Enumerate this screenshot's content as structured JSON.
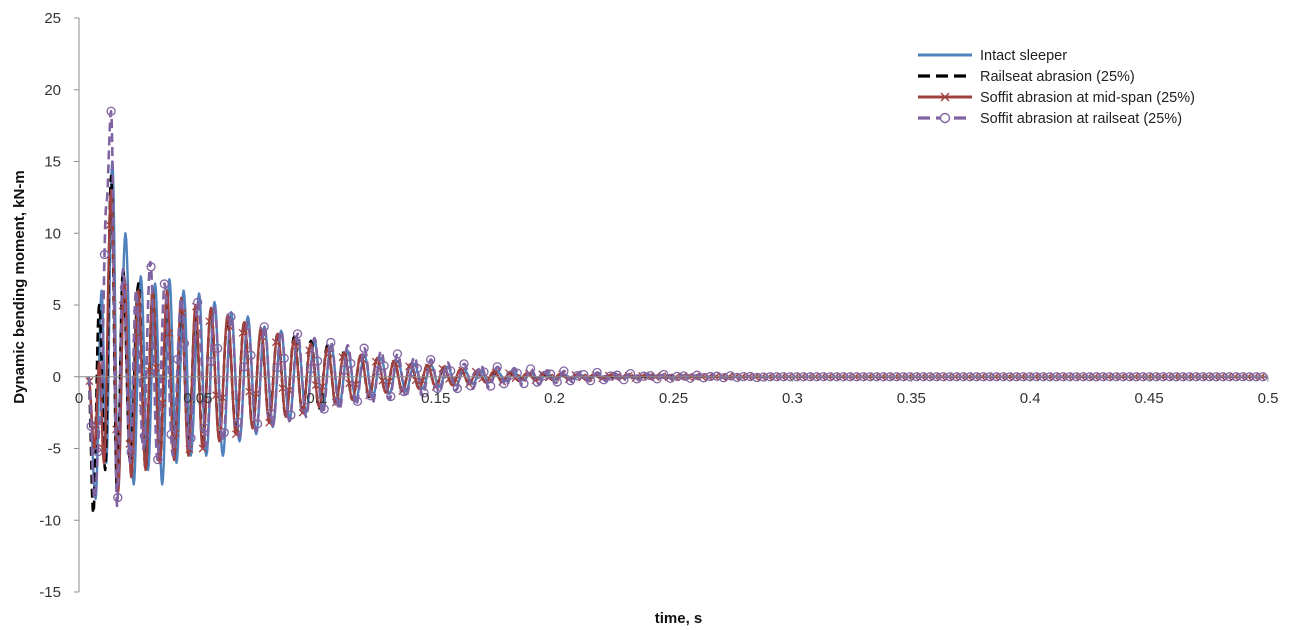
{
  "chart_data": {
    "type": "line",
    "title": "",
    "xlabel": "time, s",
    "ylabel": "Dynamic bending moment, kN-m",
    "xlim": [
      0,
      0.5
    ],
    "ylim": [
      -15,
      25
    ],
    "x_ticks": [
      0,
      0.05,
      0.1,
      0.15,
      0.2,
      0.25,
      0.3,
      0.35,
      0.4,
      0.45,
      0.5
    ],
    "x_tick_labels": [
      "0",
      "0.05",
      "0.1",
      "0.15",
      "0.2",
      "0.25",
      "0.3",
      "0.35",
      "0.4",
      "0.45",
      "0.5"
    ],
    "y_ticks": [
      -15,
      -10,
      -5,
      0,
      5,
      10,
      15,
      20,
      25
    ],
    "y_tick_labels": [
      "-15",
      "-10",
      "-5",
      "0",
      "5",
      "10",
      "15",
      "20",
      "25"
    ],
    "grid": false,
    "legend_position": "top-right",
    "series": [
      {
        "name": "Intact sleeper",
        "color": "#4F81BD",
        "style": "solid",
        "marker": "none",
        "peaks": [
          [
            0.004,
            0
          ],
          [
            0.007,
            -8.5
          ],
          [
            0.0095,
            6
          ],
          [
            0.0115,
            -6
          ],
          [
            0.014,
            15
          ],
          [
            0.0165,
            -7.5
          ],
          [
            0.0195,
            10
          ],
          [
            0.023,
            -7.5
          ],
          [
            0.026,
            7
          ],
          [
            0.029,
            -6.5
          ],
          [
            0.032,
            6.5
          ],
          [
            0.035,
            -7.5
          ],
          [
            0.038,
            6.8
          ],
          [
            0.041,
            -6
          ],
          [
            0.044,
            6
          ],
          [
            0.047,
            -5.5
          ],
          [
            0.0505,
            5.8
          ],
          [
            0.0535,
            -5.5
          ],
          [
            0.057,
            5.2
          ],
          [
            0.0605,
            -5.5
          ],
          [
            0.064,
            4.5
          ],
          [
            0.0675,
            -4.5
          ],
          [
            0.071,
            4.2
          ],
          [
            0.0745,
            -4
          ],
          [
            0.078,
            3.5
          ],
          [
            0.0815,
            -3.5
          ],
          [
            0.085,
            3.2
          ],
          [
            0.0885,
            -3
          ],
          [
            0.092,
            2.6
          ],
          [
            0.0955,
            -2.5
          ],
          [
            0.099,
            2.5
          ],
          [
            0.1025,
            -2.2
          ],
          [
            0.106,
            2.2
          ],
          [
            0.1095,
            -1.9
          ],
          [
            0.113,
            1.8
          ],
          [
            0.1165,
            -1.6
          ],
          [
            0.12,
            1.5
          ],
          [
            0.1235,
            -1.4
          ],
          [
            0.127,
            1.3
          ],
          [
            0.1305,
            -1.2
          ],
          [
            0.134,
            1.1
          ],
          [
            0.1375,
            -1
          ],
          [
            0.141,
            0.9
          ],
          [
            0.1445,
            -0.8
          ],
          [
            0.148,
            0.8
          ],
          [
            0.1515,
            -0.7
          ],
          [
            0.155,
            0.7
          ],
          [
            0.1585,
            -0.6
          ],
          [
            0.162,
            0.5
          ],
          [
            0.1655,
            -0.5
          ],
          [
            0.169,
            0.4
          ],
          [
            0.1725,
            -0.4
          ],
          [
            0.176,
            0.35
          ],
          [
            0.1795,
            -0.3
          ],
          [
            0.183,
            0.3
          ],
          [
            0.1865,
            -0.25
          ],
          [
            0.19,
            0.25
          ],
          [
            0.1935,
            -0.2
          ],
          [
            0.197,
            0.2
          ],
          [
            0.2005,
            -0.2
          ],
          [
            0.204,
            0.15
          ],
          [
            0.2075,
            -0.15
          ],
          [
            0.211,
            0.12
          ],
          [
            0.2145,
            -0.12
          ],
          [
            0.218,
            0.1
          ],
          [
            0.2215,
            -0.1
          ],
          [
            0.225,
            0.08
          ],
          [
            0.2285,
            -0.07
          ],
          [
            0.232,
            0.06
          ],
          [
            0.2355,
            -0.05
          ],
          [
            0.239,
            0.05
          ],
          [
            0.25,
            0
          ],
          [
            0.5,
            0
          ]
        ]
      },
      {
        "name": "Railseat abrasion (25%)",
        "color": "#000000",
        "style": "dashed",
        "marker": "none",
        "peaks": [
          [
            0.004,
            0
          ],
          [
            0.006,
            -9.5
          ],
          [
            0.0085,
            5
          ],
          [
            0.011,
            -6.5
          ],
          [
            0.0135,
            14
          ],
          [
            0.016,
            -8
          ],
          [
            0.0185,
            7.5
          ],
          [
            0.0215,
            -6
          ],
          [
            0.025,
            6.5
          ],
          [
            0.028,
            -6.5
          ],
          [
            0.031,
            6
          ],
          [
            0.034,
            -6
          ],
          [
            0.037,
            5.5
          ],
          [
            0.04,
            -5.5
          ],
          [
            0.043,
            5
          ],
          [
            0.046,
            -5
          ],
          [
            0.049,
            4.5
          ],
          [
            0.052,
            -4.5
          ],
          [
            0.0555,
            4.5
          ],
          [
            0.059,
            -4.2
          ],
          [
            0.0625,
            4
          ],
          [
            0.066,
            -3.8
          ],
          [
            0.0695,
            3.8
          ],
          [
            0.073,
            -3.5
          ],
          [
            0.0765,
            3.2
          ],
          [
            0.08,
            -3
          ],
          [
            0.0835,
            3
          ],
          [
            0.087,
            -2.8
          ],
          [
            0.0905,
            2.8
          ],
          [
            0.094,
            -2.5
          ],
          [
            0.0975,
            2.5
          ],
          [
            0.101,
            -2.2
          ],
          [
            0.1045,
            2.2
          ],
          [
            0.108,
            -1.9
          ],
          [
            0.1115,
            1.8
          ],
          [
            0.115,
            -1.6
          ],
          [
            0.1185,
            1.5
          ],
          [
            0.122,
            -1.4
          ],
          [
            0.1255,
            1.3
          ],
          [
            0.129,
            -1.1
          ],
          [
            0.1325,
            1.1
          ],
          [
            0.136,
            -1
          ],
          [
            0.1395,
            0.9
          ],
          [
            0.143,
            -0.8
          ],
          [
            0.1465,
            0.8
          ],
          [
            0.15,
            -0.7
          ],
          [
            0.1535,
            0.6
          ],
          [
            0.157,
            -0.55
          ],
          [
            0.1605,
            0.5
          ],
          [
            0.164,
            -0.45
          ],
          [
            0.1675,
            0.4
          ],
          [
            0.171,
            -0.35
          ],
          [
            0.1745,
            0.3
          ],
          [
            0.178,
            -0.3
          ],
          [
            0.1815,
            0.25
          ],
          [
            0.185,
            -0.2
          ],
          [
            0.1885,
            0.2
          ],
          [
            0.192,
            -0.15
          ],
          [
            0.1955,
            0.15
          ],
          [
            0.199,
            -0.12
          ],
          [
            0.2025,
            0.1
          ],
          [
            0.206,
            -0.1
          ],
          [
            0.2095,
            0.08
          ],
          [
            0.213,
            -0.07
          ],
          [
            0.2165,
            0.06
          ],
          [
            0.22,
            -0.05
          ],
          [
            0.23,
            0
          ],
          [
            0.5,
            0
          ]
        ]
      },
      {
        "name": "Soffit abrasion at mid-span (25%)",
        "color": "#A0403F",
        "style": "solid",
        "marker": "x",
        "peaks": [
          [
            0.004,
            0
          ],
          [
            0.0065,
            -5
          ],
          [
            0.0085,
            1
          ],
          [
            0.0105,
            -6
          ],
          [
            0.0135,
            13
          ],
          [
            0.0165,
            -8
          ],
          [
            0.019,
            7
          ],
          [
            0.022,
            -7
          ],
          [
            0.025,
            6
          ],
          [
            0.028,
            -6.5
          ],
          [
            0.031,
            6
          ],
          [
            0.034,
            -6
          ],
          [
            0.037,
            6
          ],
          [
            0.04,
            -5.8
          ],
          [
            0.043,
            5.5
          ],
          [
            0.046,
            -5.5
          ],
          [
            0.049,
            5
          ],
          [
            0.052,
            -5
          ],
          [
            0.0555,
            4.8
          ],
          [
            0.059,
            -4.5
          ],
          [
            0.0625,
            4.3
          ],
          [
            0.066,
            -4
          ],
          [
            0.0695,
            3.8
          ],
          [
            0.073,
            -3.6
          ],
          [
            0.0765,
            3.4
          ],
          [
            0.08,
            -3.2
          ],
          [
            0.0835,
            3
          ],
          [
            0.087,
            -2.8
          ],
          [
            0.0905,
            2.6
          ],
          [
            0.094,
            -2.5
          ],
          [
            0.0975,
            2.3
          ],
          [
            0.101,
            -2.1
          ],
          [
            0.1045,
            2
          ],
          [
            0.108,
            -1.8
          ],
          [
            0.1115,
            1.7
          ],
          [
            0.115,
            -1.6
          ],
          [
            0.1185,
            1.5
          ],
          [
            0.122,
            -1.3
          ],
          [
            0.1255,
            1.3
          ],
          [
            0.129,
            -1.1
          ],
          [
            0.1325,
            1.1
          ],
          [
            0.136,
            -1
          ],
          [
            0.1395,
            0.9
          ],
          [
            0.143,
            -0.85
          ],
          [
            0.1465,
            0.8
          ],
          [
            0.15,
            -0.7
          ],
          [
            0.1535,
            0.7
          ],
          [
            0.157,
            -0.6
          ],
          [
            0.1605,
            0.55
          ],
          [
            0.164,
            -0.5
          ],
          [
            0.1675,
            0.45
          ],
          [
            0.171,
            -0.4
          ],
          [
            0.1745,
            0.38
          ],
          [
            0.178,
            -0.35
          ],
          [
            0.1815,
            0.32
          ],
          [
            0.185,
            -0.3
          ],
          [
            0.1885,
            0.27
          ],
          [
            0.192,
            -0.25
          ],
          [
            0.1955,
            0.22
          ],
          [
            0.199,
            -0.2
          ],
          [
            0.2025,
            0.2
          ],
          [
            0.206,
            -0.18
          ],
          [
            0.2095,
            0.16
          ],
          [
            0.213,
            -0.15
          ],
          [
            0.2165,
            0.13
          ],
          [
            0.22,
            -0.12
          ],
          [
            0.2235,
            0.1
          ],
          [
            0.227,
            -0.1
          ],
          [
            0.2305,
            0.09
          ],
          [
            0.234,
            -0.08
          ],
          [
            0.2375,
            0.07
          ],
          [
            0.241,
            -0.06
          ],
          [
            0.2445,
            0.05
          ],
          [
            0.248,
            -0.05
          ],
          [
            0.26,
            0
          ],
          [
            0.5,
            0
          ]
        ]
      },
      {
        "name": "Soffit abrasion at railseat (25%)",
        "color": "#8064A2",
        "style": "dashed",
        "marker": "o",
        "peaks": [
          [
            0.004,
            0
          ],
          [
            0.0065,
            -8.5
          ],
          [
            0.009,
            -3
          ],
          [
            0.0115,
            12
          ],
          [
            0.0135,
            18.5
          ],
          [
            0.016,
            -9
          ],
          [
            0.0185,
            7.5
          ],
          [
            0.0215,
            -6
          ],
          [
            0.024,
            6
          ],
          [
            0.027,
            -5
          ],
          [
            0.03,
            8
          ],
          [
            0.033,
            -5.8
          ],
          [
            0.036,
            6.5
          ],
          [
            0.0395,
            -5.5
          ],
          [
            0.043,
            5.5
          ],
          [
            0.0465,
            -5
          ],
          [
            0.05,
            5.2
          ],
          [
            0.0535,
            -4.8
          ],
          [
            0.057,
            4.8
          ],
          [
            0.0605,
            -4.5
          ],
          [
            0.064,
            4.2
          ],
          [
            0.0675,
            -4.2
          ],
          [
            0.071,
            3.8
          ],
          [
            0.0745,
            -3.8
          ],
          [
            0.078,
            3.5
          ],
          [
            0.0815,
            -3.4
          ],
          [
            0.085,
            3.2
          ],
          [
            0.0885,
            -3.1
          ],
          [
            0.092,
            3
          ],
          [
            0.0955,
            -2.8
          ],
          [
            0.099,
            2.7
          ],
          [
            0.1025,
            -2.6
          ],
          [
            0.106,
            2.4
          ],
          [
            0.1095,
            -2.3
          ],
          [
            0.113,
            2.2
          ],
          [
            0.1165,
            -2
          ],
          [
            0.12,
            2
          ],
          [
            0.1235,
            -1.8
          ],
          [
            0.127,
            1.8
          ],
          [
            0.1305,
            -1.6
          ],
          [
            0.134,
            1.6
          ],
          [
            0.1375,
            -1.4
          ],
          [
            0.141,
            1.4
          ],
          [
            0.1445,
            -1.3
          ],
          [
            0.148,
            1.2
          ],
          [
            0.1515,
            -1.1
          ],
          [
            0.155,
            1
          ],
          [
            0.1585,
            -0.95
          ],
          [
            0.162,
            0.9
          ],
          [
            0.1655,
            -0.85
          ],
          [
            0.169,
            0.8
          ],
          [
            0.1725,
            -0.75
          ],
          [
            0.176,
            0.7
          ],
          [
            0.1795,
            -0.65
          ],
          [
            0.183,
            0.6
          ],
          [
            0.1865,
            -0.55
          ],
          [
            0.19,
            0.55
          ],
          [
            0.1935,
            -0.5
          ],
          [
            0.197,
            0.45
          ],
          [
            0.2005,
            -0.42
          ],
          [
            0.204,
            0.4
          ],
          [
            0.2075,
            -0.37
          ],
          [
            0.211,
            0.35
          ],
          [
            0.2145,
            -0.32
          ],
          [
            0.218,
            0.3
          ],
          [
            0.2215,
            -0.28
          ],
          [
            0.225,
            0.26
          ],
          [
            0.2285,
            -0.24
          ],
          [
            0.232,
            0.22
          ],
          [
            0.2355,
            -0.2
          ],
          [
            0.239,
            0.19
          ],
          [
            0.2425,
            -0.17
          ],
          [
            0.246,
            0.16
          ],
          [
            0.2495,
            -0.15
          ],
          [
            0.253,
            0.14
          ],
          [
            0.2565,
            -0.12
          ],
          [
            0.26,
            0.11
          ],
          [
            0.2635,
            -0.1
          ],
          [
            0.267,
            0.09
          ],
          [
            0.2705,
            -0.08
          ],
          [
            0.274,
            0.07
          ],
          [
            0.2775,
            -0.06
          ],
          [
            0.281,
            0.05
          ],
          [
            0.2845,
            -0.05
          ],
          [
            0.29,
            0
          ],
          [
            0.5,
            0
          ]
        ]
      }
    ]
  }
}
